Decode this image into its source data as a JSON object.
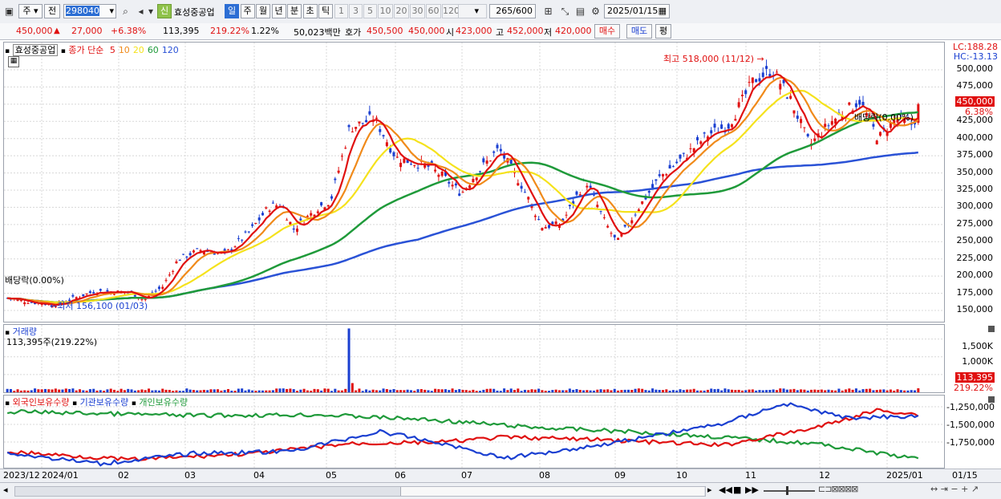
{
  "toolbar": {
    "market": "주",
    "prev_label": "전",
    "code": "298040",
    "new_badge": "신",
    "name": "효성중공업",
    "periods": [
      "일",
      "주",
      "월",
      "년",
      "분",
      "초",
      "틱"
    ],
    "active_period": "일",
    "intervals": [
      "1",
      "3",
      "5",
      "10",
      "20",
      "30",
      "60",
      "120"
    ],
    "count": "265",
    "count_total": "/600",
    "date": "2025/01/15"
  },
  "quote": {
    "price": "450,000",
    "change": "27,000",
    "rate": "+6.38%",
    "volume": "113,395",
    "vol_ratio": "219.22%",
    "turnover_rate": "1.22%",
    "amount": "50,023백만",
    "bid_label": "호가",
    "bid": "450,500",
    "ask": "450,000",
    "open_label": "시",
    "open": "423,000",
    "high_label": "고",
    "high": "452,000",
    "low_label": "저",
    "low": "420,000",
    "buy_btn": "매수",
    "sell_btn": "매도",
    "eval_btn": "평"
  },
  "price_panel": {
    "stock_name": "효성중공업",
    "ma_label": "종가 단순",
    "ma_periods": [
      "5",
      "10",
      "20",
      "60",
      "120"
    ],
    "lc": "LC:188.28",
    "hc": "HC:-13.13",
    "high_note": "최고 518,000 (11/12)",
    "low_note": "최저 156,100 (01/03)",
    "dividend_left": "배당락(0.00%)",
    "dividend_right": "배당락(0.00%)",
    "current_price_tag": "450,000",
    "current_rate_tag": "6.38%",
    "y_ticks": [
      "500,000",
      "475,000",
      "450,000",
      "425,000",
      "400,000",
      "375,000",
      "350,000",
      "325,000",
      "300,000",
      "275,000",
      "250,000",
      "225,000",
      "200,000",
      "175,000",
      "150,000"
    ]
  },
  "volume_panel": {
    "title": "거래량",
    "value": "113,395주(219.22%)",
    "y_ticks": [
      "1,500K",
      "1,000K"
    ],
    "tag_value": "113,395",
    "tag_ratio": "219.22%"
  },
  "holding_panel": {
    "series": [
      "외국인보유수량",
      "기관보유수량",
      "개인보유수량"
    ],
    "y_ticks": [
      "-1,250,000",
      "-1,500,000",
      "-1,750,000"
    ]
  },
  "time_axis": [
    "2023/12",
    "2024/01",
    "02",
    "03",
    "04",
    "05",
    "06",
    "07",
    "08",
    "09",
    "10",
    "11",
    "12",
    "2025/01",
    "01/15"
  ],
  "colors": {
    "up": "#e01010",
    "down": "#1a3fd1",
    "ma5": "#e01010",
    "ma10": "#f08a1a",
    "ma20": "#f5e21c",
    "ma60": "#1f9a3a",
    "ma120": "#2a52d6"
  }
}
